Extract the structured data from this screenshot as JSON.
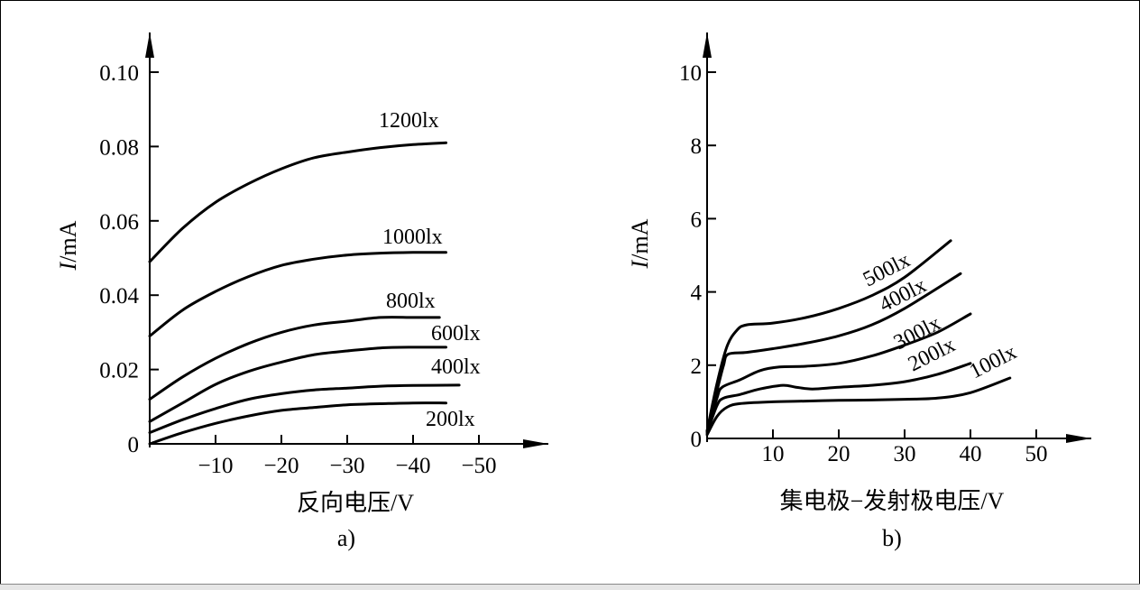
{
  "chart_data": [
    {
      "type": "line",
      "panel_label": "a)",
      "xlabel": "反向电压/V",
      "ylabel": "I/mA",
      "ylabel_italic": "I",
      "ylabel_rest": "/mA",
      "xlim": [
        0,
        -50
      ],
      "ylim": [
        0,
        0.1
      ],
      "x_ticks": [
        -10,
        -20,
        -30,
        -40,
        -50
      ],
      "x_tick_labels": [
        "−10",
        "−20",
        "−30",
        "−40",
        "−50"
      ],
      "y_ticks": [
        0,
        0.02,
        0.04,
        0.06,
        0.08,
        0.1
      ],
      "y_tick_labels": [
        "0",
        "0.02",
        "0.04",
        "0.06",
        "0.08",
        "0.10"
      ],
      "series": [
        {
          "name": "1200lx",
          "points": [
            [
              0,
              0.049
            ],
            [
              -5,
              0.058
            ],
            [
              -10,
              0.065
            ],
            [
              -15,
              0.07
            ],
            [
              -20,
              0.074
            ],
            [
              -25,
              0.077
            ],
            [
              -30,
              0.0785
            ],
            [
              -35,
              0.0797
            ],
            [
              -40,
              0.0805
            ],
            [
              -45,
              0.081
            ]
          ]
        },
        {
          "name": "1000lx",
          "points": [
            [
              0,
              0.029
            ],
            [
              -5,
              0.036
            ],
            [
              -10,
              0.041
            ],
            [
              -15,
              0.045
            ],
            [
              -20,
              0.048
            ],
            [
              -25,
              0.0497
            ],
            [
              -30,
              0.0508
            ],
            [
              -35,
              0.0513
            ],
            [
              -40,
              0.0515
            ],
            [
              -45,
              0.0515
            ]
          ]
        },
        {
          "name": "800lx",
          "points": [
            [
              0,
              0.012
            ],
            [
              -5,
              0.018
            ],
            [
              -10,
              0.023
            ],
            [
              -15,
              0.027
            ],
            [
              -20,
              0.03
            ],
            [
              -25,
              0.032
            ],
            [
              -30,
              0.033
            ],
            [
              -35,
              0.034
            ],
            [
              -40,
              0.034
            ],
            [
              -44,
              0.034
            ]
          ]
        },
        {
          "name": "600lx",
          "points": [
            [
              0,
              0.006
            ],
            [
              -5,
              0.011
            ],
            [
              -10,
              0.016
            ],
            [
              -15,
              0.0195
            ],
            [
              -20,
              0.022
            ],
            [
              -25,
              0.024
            ],
            [
              -30,
              0.025
            ],
            [
              -35,
              0.0258
            ],
            [
              -40,
              0.026
            ],
            [
              -45,
              0.026
            ]
          ]
        },
        {
          "name": "400lx",
          "points": [
            [
              0,
              0.003
            ],
            [
              -5,
              0.0065
            ],
            [
              -10,
              0.0095
            ],
            [
              -15,
              0.012
            ],
            [
              -20,
              0.0135
            ],
            [
              -25,
              0.0145
            ],
            [
              -30,
              0.015
            ],
            [
              -35,
              0.0155
            ],
            [
              -40,
              0.0157
            ],
            [
              -47,
              0.0158
            ]
          ]
        },
        {
          "name": "200lx",
          "points": [
            [
              0,
              0.0
            ],
            [
              -5,
              0.003
            ],
            [
              -10,
              0.0055
            ],
            [
              -15,
              0.0075
            ],
            [
              -20,
              0.009
            ],
            [
              -25,
              0.0098
            ],
            [
              -30,
              0.0105
            ],
            [
              -35,
              0.0108
            ],
            [
              -40,
              0.011
            ],
            [
              -45,
              0.011
            ]
          ]
        }
      ]
    },
    {
      "type": "line",
      "panel_label": "b)",
      "xlabel": "集电极−发射极电压/V",
      "ylabel": "I/mA",
      "ylabel_italic": "I",
      "ylabel_rest": "/mA",
      "xlim": [
        0,
        50
      ],
      "ylim": [
        0,
        10
      ],
      "x_ticks": [
        10,
        20,
        30,
        40,
        50
      ],
      "x_tick_labels": [
        "10",
        "20",
        "30",
        "40",
        "50"
      ],
      "y_ticks": [
        0,
        2,
        4,
        6,
        8,
        10
      ],
      "y_tick_labels": [
        "0",
        "2",
        "4",
        "6",
        "8",
        "10"
      ],
      "series": [
        {
          "name": "500lx",
          "points": [
            [
              0,
              0.2
            ],
            [
              1.5,
              1.5
            ],
            [
              3,
              2.5
            ],
            [
              4.5,
              2.95
            ],
            [
              6,
              3.1
            ],
            [
              10,
              3.15
            ],
            [
              15,
              3.3
            ],
            [
              20,
              3.55
            ],
            [
              25,
              3.9
            ],
            [
              30,
              4.4
            ],
            [
              37,
              5.4
            ]
          ]
        },
        {
          "name": "400lx",
          "points": [
            [
              0,
              0.2
            ],
            [
              1.5,
              1.3
            ],
            [
              2.5,
              2.0
            ],
            [
              3.2,
              2.3
            ],
            [
              6,
              2.35
            ],
            [
              10,
              2.45
            ],
            [
              15,
              2.6
            ],
            [
              20,
              2.8
            ],
            [
              25,
              3.1
            ],
            [
              30,
              3.55
            ],
            [
              38.5,
              4.5
            ]
          ]
        },
        {
          "name": "300lx",
          "points": [
            [
              0,
              0.2
            ],
            [
              1.5,
              1.1
            ],
            [
              2.3,
              1.4
            ],
            [
              5,
              1.6
            ],
            [
              8,
              1.85
            ],
            [
              11,
              1.95
            ],
            [
              15,
              1.97
            ],
            [
              20,
              2.05
            ],
            [
              25,
              2.25
            ],
            [
              30,
              2.55
            ],
            [
              35,
              2.9
            ],
            [
              40,
              3.4
            ]
          ]
        },
        {
          "name": "200lx",
          "points": [
            [
              0,
              0.15
            ],
            [
              1.5,
              0.9
            ],
            [
              2.5,
              1.1
            ],
            [
              5,
              1.2
            ],
            [
              8,
              1.35
            ],
            [
              11.5,
              1.45
            ],
            [
              13.5,
              1.4
            ],
            [
              16,
              1.35
            ],
            [
              20,
              1.4
            ],
            [
              25,
              1.45
            ],
            [
              30,
              1.55
            ],
            [
              35,
              1.75
            ],
            [
              40,
              2.05
            ]
          ]
        },
        {
          "name": "100lx",
          "points": [
            [
              0,
              0.1
            ],
            [
              1.5,
              0.6
            ],
            [
              3,
              0.85
            ],
            [
              5,
              0.95
            ],
            [
              10,
              1.0
            ],
            [
              15,
              1.02
            ],
            [
              20,
              1.04
            ],
            [
              25,
              1.05
            ],
            [
              30,
              1.07
            ],
            [
              35,
              1.1
            ],
            [
              40,
              1.25
            ],
            [
              46,
              1.65
            ]
          ]
        }
      ]
    }
  ]
}
